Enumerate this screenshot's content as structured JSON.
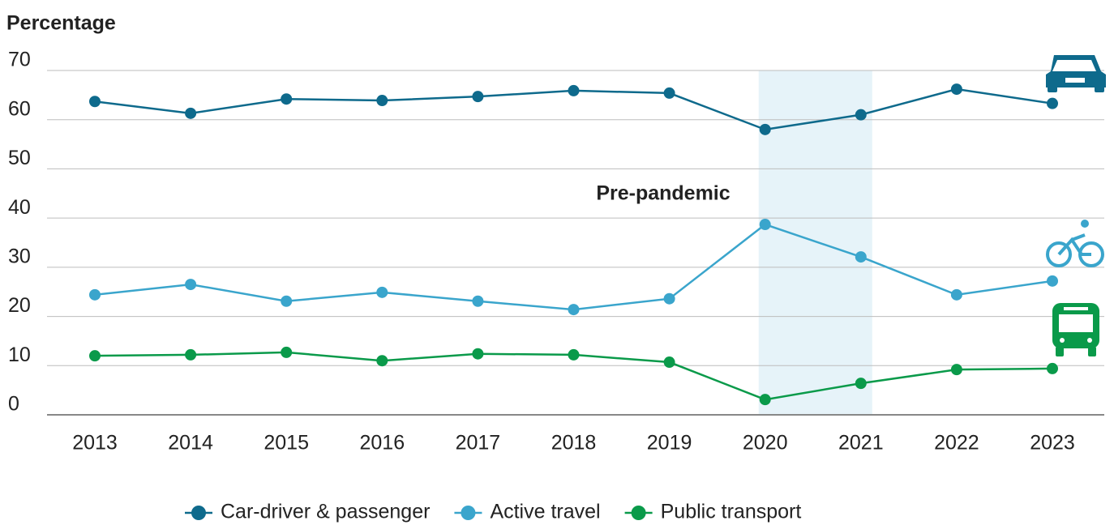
{
  "chart_data": {
    "type": "line",
    "y_axis_title": "Percentage",
    "annotation": "Pre-pandemic",
    "categories": [
      "2013",
      "2014",
      "2015",
      "2016",
      "2017",
      "2018",
      "2019",
      "2020",
      "2021",
      "2022",
      "2023"
    ],
    "series": [
      {
        "name": "Car-driver & passenger",
        "color": "#0e6a8c",
        "values": [
          63.7,
          61.3,
          64.2,
          63.9,
          64.7,
          65.9,
          65.4,
          58.0,
          61.0,
          66.2,
          63.3
        ]
      },
      {
        "name": "Active travel",
        "color": "#3aa5cc",
        "values": [
          24.4,
          26.5,
          23.1,
          24.9,
          23.1,
          21.4,
          23.6,
          38.7,
          32.1,
          24.4,
          27.2
        ]
      },
      {
        "name": "Public transport",
        "color": "#0a9a4a",
        "values": [
          12.0,
          12.2,
          12.7,
          11.0,
          12.4,
          12.2,
          10.7,
          3.1,
          6.4,
          9.2,
          9.4
        ]
      }
    ],
    "ylim": [
      0,
      70
    ],
    "yticks": [
      0,
      10,
      20,
      30,
      40,
      50,
      60,
      70
    ],
    "grid": true,
    "legend": "bottom"
  }
}
